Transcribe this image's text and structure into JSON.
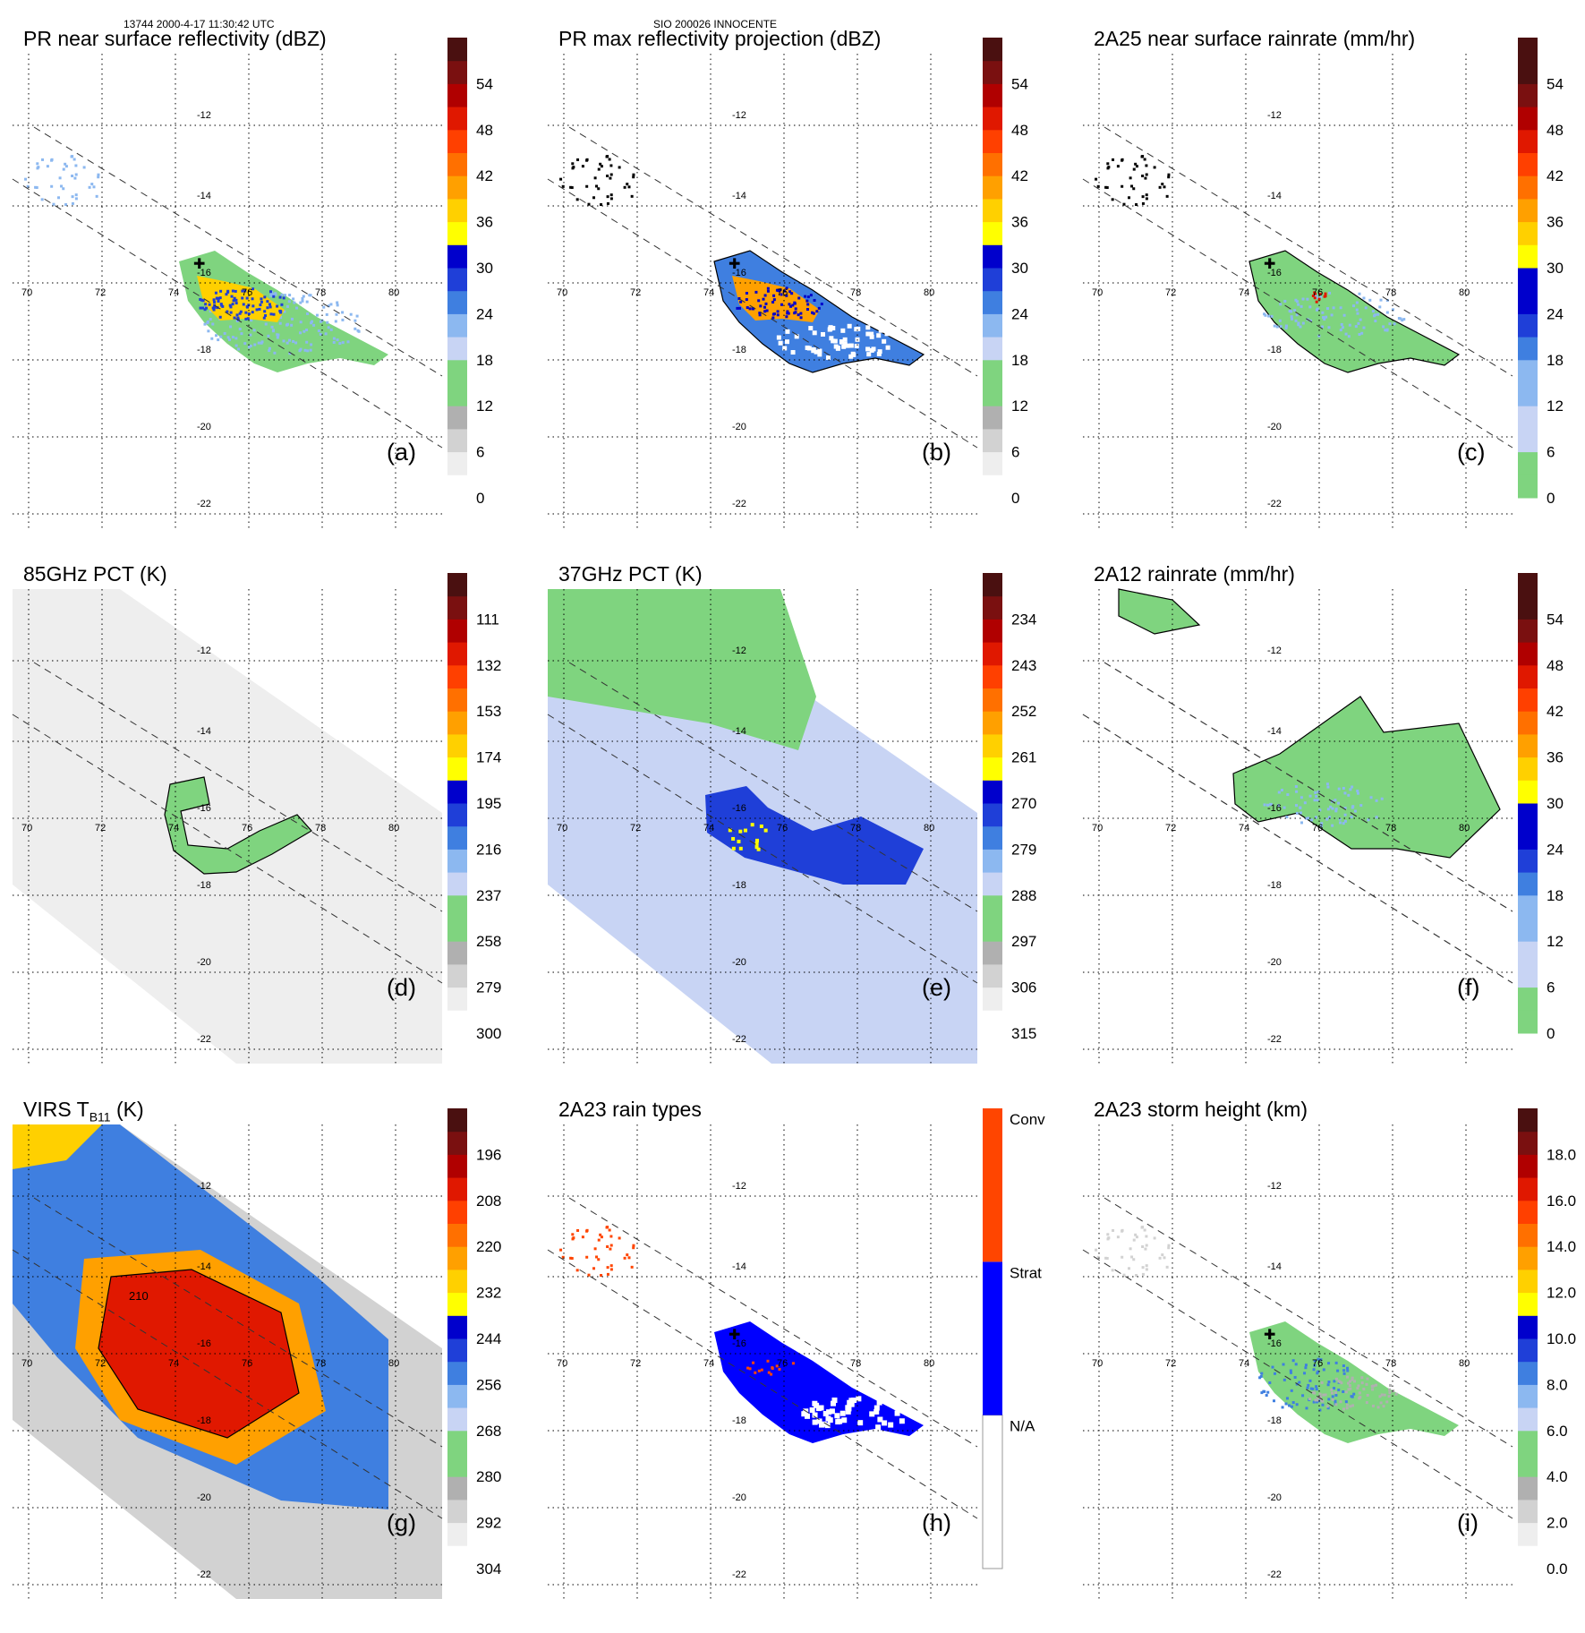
{
  "header": {
    "left": "13744 2000-4-17 11:30:42 UTC",
    "center": "SIO 200026 INNOCENTE"
  },
  "lat_labels": [
    "-12",
    "-14",
    "-16",
    "-18",
    "-20",
    "-22"
  ],
  "lon_labels": [
    "70",
    "72",
    "74",
    "76",
    "78",
    "80"
  ],
  "colors": {
    "grays": [
      "#ffffff",
      "#eeeeee",
      "#d2d2d2",
      "#b0b0b0"
    ],
    "green": "#7fd47f",
    "blues": [
      "#c8d4f4",
      "#8cb8f0",
      "#3f7fe0",
      "#1f3fd8",
      "#0000cc"
    ],
    "warm": [
      "#ffff00",
      "#ffd000",
      "#ffa000",
      "#ff7000",
      "#ff4000",
      "#e01800",
      "#b00000",
      "#7a1010",
      "#4a1010"
    ],
    "conv": "#ff4500",
    "strat": "#0000ff",
    "na": "#ffffff"
  },
  "panels": [
    {
      "id": "a",
      "title": "PR near surface reflectivity (dBZ)",
      "label": "(a)",
      "scheme": "std",
      "ticks": [
        "0",
        "6",
        "12",
        "18",
        "24",
        "30",
        "36",
        "42",
        "48",
        "54"
      ],
      "vis": "pr"
    },
    {
      "id": "b",
      "title": "PR max reflectivity projection (dBZ)",
      "label": "(b)",
      "scheme": "std",
      "ticks": [
        "0",
        "6",
        "12",
        "18",
        "24",
        "30",
        "36",
        "42",
        "48",
        "54"
      ],
      "vis": "pr_max"
    },
    {
      "id": "c",
      "title": "2A25 near surface rainrate (mm/hr)",
      "label": "(c)",
      "scheme": "rain",
      "ticks": [
        "0",
        "6",
        "12",
        "18",
        "24",
        "30",
        "36",
        "42",
        "48",
        "54"
      ],
      "vis": "pr_rain"
    },
    {
      "id": "d",
      "title": "85GHz PCT (K)",
      "label": "(d)",
      "scheme": "std",
      "ticks": [
        "300",
        "279",
        "258",
        "237",
        "216",
        "195",
        "174",
        "153",
        "132",
        "111"
      ],
      "vis": "tmi85"
    },
    {
      "id": "e",
      "title": "37GHz PCT (K)",
      "label": "(e)",
      "scheme": "std",
      "ticks": [
        "315",
        "306",
        "297",
        "288",
        "279",
        "270",
        "261",
        "252",
        "243",
        "234"
      ],
      "vis": "tmi37"
    },
    {
      "id": "f",
      "title": "2A12 rainrate (mm/hr)",
      "label": "(f)",
      "scheme": "rain",
      "ticks": [
        "0",
        "6",
        "12",
        "18",
        "24",
        "30",
        "36",
        "42",
        "48",
        "54"
      ],
      "vis": "tmi_rain"
    },
    {
      "id": "g",
      "title": "VIRS T",
      "title_sub": "B11",
      "title_suffix": " (K)",
      "label": "(g)",
      "scheme": "std",
      "ticks": [
        "304",
        "292",
        "280",
        "268",
        "256",
        "244",
        "232",
        "220",
        "208",
        "196"
      ],
      "vis": "virs",
      "contour_label": "210"
    },
    {
      "id": "h",
      "title": "2A23 rain types",
      "label": "(h)",
      "scheme": "raintype",
      "ticks": [
        "N/A",
        "Strat",
        "Conv"
      ],
      "vis": "types"
    },
    {
      "id": "i",
      "title": "2A23 storm height (km)",
      "label": "(i)",
      "scheme": "height",
      "ticks": [
        "0.0",
        "2.0",
        "4.0",
        "6.0",
        "8.0",
        "10.0",
        "12.0",
        "14.0",
        "16.0",
        "18.0"
      ],
      "vis": "height"
    }
  ]
}
